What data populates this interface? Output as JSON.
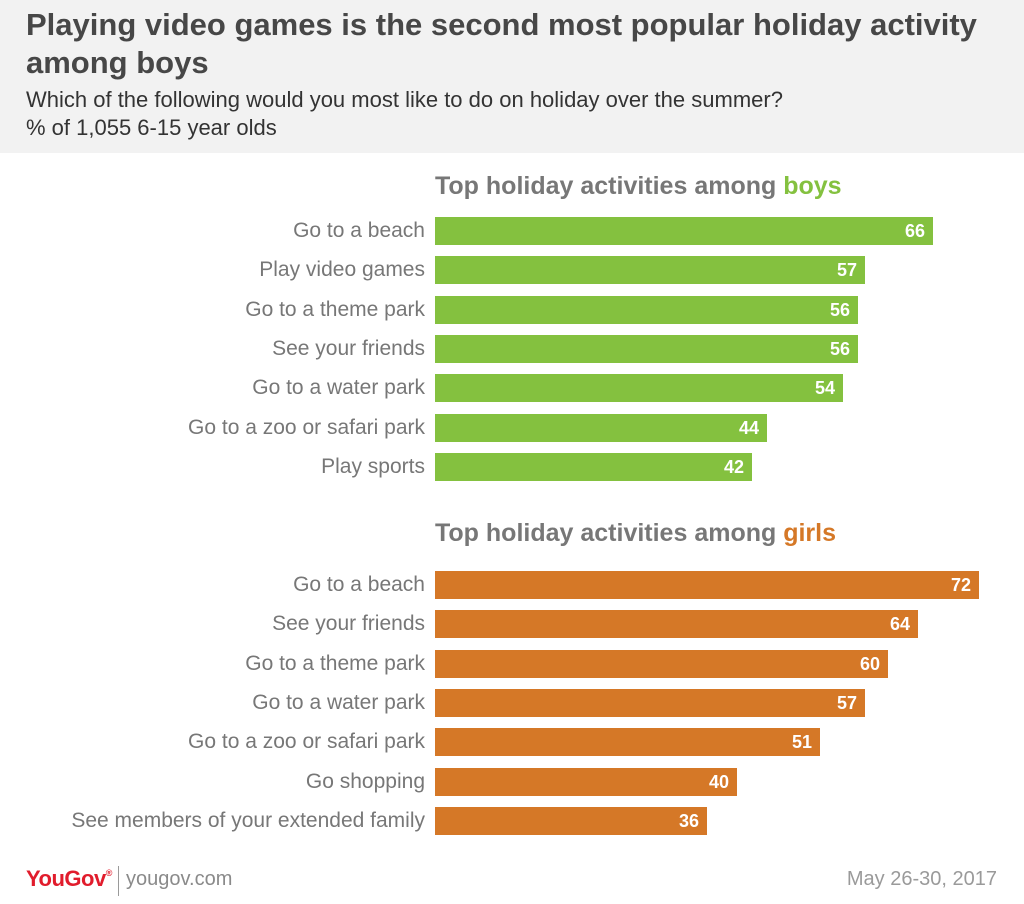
{
  "header": {
    "title": "Playing video games is the second most popular holiday activity among boys",
    "subtitle_line1": "Which of the following would you most like to do on holiday over the summer?",
    "subtitle_line2": "% of 1,055 6-15 year olds"
  },
  "colors": {
    "boys": "#84c13f",
    "girls": "#d57827",
    "header_bg": "#f2f2f2"
  },
  "chart_data": [
    {
      "type": "bar",
      "orientation": "horizontal",
      "title_prefix": "Top holiday activities among ",
      "title_highlight": "boys",
      "categories": [
        "Go to a beach",
        "Play video games",
        "Go to a theme park",
        "See your friends",
        "Go to a water park",
        "Go to a zoo or safari park",
        "Play sports"
      ],
      "values": [
        66,
        57,
        56,
        56,
        54,
        44,
        42
      ],
      "unit": "%"
    },
    {
      "type": "bar",
      "orientation": "horizontal",
      "title_prefix": "Top holiday activities among ",
      "title_highlight": "girls",
      "categories": [
        "Go to a beach",
        "See your friends",
        "Go to a theme park",
        "Go to a water park",
        "Go to a zoo or safari park",
        "Go shopping",
        "See members of your extended family"
      ],
      "values": [
        72,
        64,
        60,
        57,
        51,
        40,
        36
      ],
      "unit": "%"
    }
  ],
  "footer": {
    "brand": "YouGov",
    "url": "yougov.com",
    "date": "May 26-30, 2017"
  }
}
